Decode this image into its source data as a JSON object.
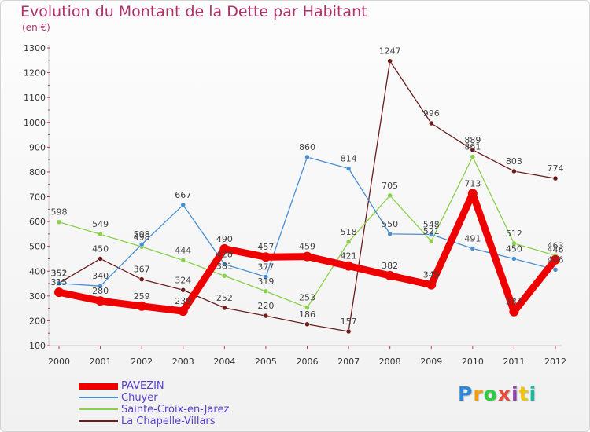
{
  "chart_data": {
    "type": "line",
    "title": "Evolution du Montant de la Dette par Habitant",
    "subtitle": "(en €)",
    "x": [
      "2000",
      "2001",
      "2002",
      "2003",
      "2004",
      "2005",
      "2006",
      "2007",
      "2008",
      "2009",
      "2010",
      "2011",
      "2012"
    ],
    "ylim": [
      100,
      1300
    ],
    "yticks": [
      100,
      200,
      300,
      400,
      500,
      600,
      700,
      800,
      900,
      1000,
      1100,
      1200,
      1300
    ],
    "grid": false,
    "legend_position": "bottom-left",
    "series": [
      {
        "name": "PAVEZIN",
        "color": "#ee0000",
        "values": [
          315,
          280,
          259,
          239,
          490,
          457,
          459,
          421,
          382,
          345,
          713,
          237,
          446
        ]
      },
      {
        "name": "Chuyer",
        "color": "#4a8fd0",
        "values": [
          351,
          340,
          508,
          667,
          428,
          377,
          860,
          814,
          550,
          548,
          491,
          450,
          406
        ]
      },
      {
        "name": "Sainte-Croix-en-Jarez",
        "color": "#8ad04a",
        "values": [
          598,
          549,
          498,
          444,
          381,
          319,
          253,
          518,
          705,
          521,
          861,
          512,
          463
        ]
      },
      {
        "name": "La Chapelle-Villars",
        "color": "#6b1c1c",
        "values": [
          352,
          450,
          367,
          324,
          252,
          220,
          186,
          157,
          1247,
          996,
          889,
          803,
          774
        ]
      }
    ]
  },
  "logo": {
    "letters": [
      "P",
      "r",
      "o",
      "x",
      "i",
      "t",
      "i"
    ],
    "colors": [
      "#2e86d6",
      "#f39c12",
      "#2ecc40",
      "#e74c3c",
      "#8e44ad",
      "#f1c40f",
      "#1abc9c"
    ]
  }
}
